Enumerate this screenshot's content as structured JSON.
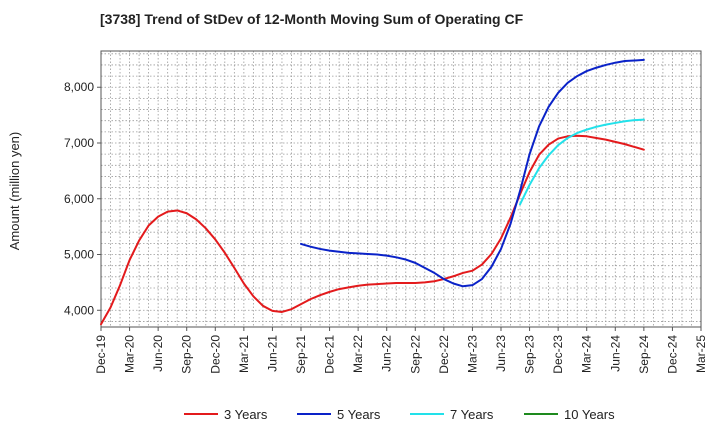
{
  "chart_data": {
    "type": "line",
    "title": "[3738]  Trend of StDev of 12-Month Moving Sum of Operating CF",
    "xlabel": "",
    "ylabel": "Amount (million yen)",
    "ylim": [
      3700,
      8650
    ],
    "yticks": [
      4000,
      5000,
      6000,
      7000,
      8000
    ],
    "ytick_labels": [
      "4,000",
      "5,000",
      "6,000",
      "7,000",
      "8,000"
    ],
    "xlim": [
      "Dec-19",
      "Mar-25"
    ],
    "xticks": [
      "Dec-19",
      "Mar-20",
      "Jun-20",
      "Sep-20",
      "Dec-20",
      "Mar-21",
      "Jun-21",
      "Sep-21",
      "Dec-21",
      "Mar-22",
      "Jun-22",
      "Sep-22",
      "Dec-22",
      "Mar-23",
      "Jun-23",
      "Sep-23",
      "Dec-23",
      "Mar-24",
      "Jun-24",
      "Sep-24",
      "Dec-24",
      "Mar-25"
    ],
    "grid": true,
    "grid_style": "dotted",
    "legend_position": "bottom",
    "series": [
      {
        "name": "3 Years",
        "color": "#e31a1c",
        "points": [
          [
            "Dec-19",
            3750
          ],
          [
            "Jan-20",
            4050
          ],
          [
            "Feb-20",
            4450
          ],
          [
            "Mar-20",
            4900
          ],
          [
            "Apr-20",
            5250
          ],
          [
            "May-20",
            5520
          ],
          [
            "Jun-20",
            5680
          ],
          [
            "Jul-20",
            5770
          ],
          [
            "Aug-20",
            5790
          ],
          [
            "Sep-20",
            5740
          ],
          [
            "Oct-20",
            5630
          ],
          [
            "Nov-20",
            5470
          ],
          [
            "Dec-20",
            5270
          ],
          [
            "Jan-21",
            5030
          ],
          [
            "Feb-21",
            4760
          ],
          [
            "Mar-21",
            4480
          ],
          [
            "Apr-21",
            4250
          ],
          [
            "May-21",
            4080
          ],
          [
            "Jun-21",
            3990
          ],
          [
            "Jul-21",
            3970
          ],
          [
            "Aug-21",
            4020
          ],
          [
            "Sep-21",
            4110
          ],
          [
            "Oct-21",
            4200
          ],
          [
            "Nov-21",
            4270
          ],
          [
            "Dec-21",
            4330
          ],
          [
            "Jan-22",
            4380
          ],
          [
            "Feb-22",
            4410
          ],
          [
            "Mar-22",
            4440
          ],
          [
            "Apr-22",
            4460
          ],
          [
            "May-22",
            4470
          ],
          [
            "Jun-22",
            4480
          ],
          [
            "Jul-22",
            4490
          ],
          [
            "Aug-22",
            4490
          ],
          [
            "Sep-22",
            4490
          ],
          [
            "Oct-22",
            4500
          ],
          [
            "Nov-22",
            4520
          ],
          [
            "Dec-22",
            4560
          ],
          [
            "Jan-23",
            4610
          ],
          [
            "Feb-23",
            4670
          ],
          [
            "Mar-23",
            4710
          ],
          [
            "Apr-23",
            4820
          ],
          [
            "May-23",
            5010
          ],
          [
            "Jun-23",
            5290
          ],
          [
            "Jul-23",
            5660
          ],
          [
            "Aug-23",
            6080
          ],
          [
            "Sep-23",
            6480
          ],
          [
            "Oct-23",
            6790
          ],
          [
            "Nov-23",
            6970
          ],
          [
            "Dec-23",
            7080
          ],
          [
            "Jan-24",
            7120
          ],
          [
            "Feb-24",
            7130
          ],
          [
            "Mar-24",
            7120
          ],
          [
            "Apr-24",
            7090
          ],
          [
            "May-24",
            7060
          ],
          [
            "Jun-24",
            7020
          ],
          [
            "Jul-24",
            6980
          ],
          [
            "Aug-24",
            6930
          ],
          [
            "Sep-24",
            6880
          ]
        ]
      },
      {
        "name": "5 Years",
        "color": "#0a22c8",
        "points": [
          [
            "Sep-21",
            5190
          ],
          [
            "Oct-21",
            5140
          ],
          [
            "Nov-21",
            5100
          ],
          [
            "Dec-21",
            5070
          ],
          [
            "Jan-22",
            5050
          ],
          [
            "Feb-22",
            5030
          ],
          [
            "Mar-22",
            5020
          ],
          [
            "Apr-22",
            5010
          ],
          [
            "May-22",
            5000
          ],
          [
            "Jun-22",
            4980
          ],
          [
            "Jul-22",
            4950
          ],
          [
            "Aug-22",
            4910
          ],
          [
            "Sep-22",
            4850
          ],
          [
            "Oct-22",
            4760
          ],
          [
            "Nov-22",
            4670
          ],
          [
            "Dec-22",
            4560
          ],
          [
            "Jan-23",
            4480
          ],
          [
            "Feb-23",
            4430
          ],
          [
            "Mar-23",
            4450
          ],
          [
            "Apr-23",
            4560
          ],
          [
            "May-23",
            4780
          ],
          [
            "Jun-23",
            5100
          ],
          [
            "Jul-23",
            5550
          ],
          [
            "Aug-23",
            6140
          ],
          [
            "Sep-23",
            6800
          ],
          [
            "Oct-23",
            7300
          ],
          [
            "Nov-23",
            7650
          ],
          [
            "Dec-23",
            7900
          ],
          [
            "Jan-24",
            8080
          ],
          [
            "Feb-24",
            8200
          ],
          [
            "Mar-24",
            8290
          ],
          [
            "Apr-24",
            8350
          ],
          [
            "May-24",
            8400
          ],
          [
            "Jun-24",
            8440
          ],
          [
            "Jul-24",
            8470
          ],
          [
            "Aug-24",
            8480
          ],
          [
            "Sep-24",
            8490
          ]
        ]
      },
      {
        "name": "7 Years",
        "color": "#22e1ea",
        "points": [
          [
            "Aug-23",
            5900
          ],
          [
            "Sep-23",
            6250
          ],
          [
            "Oct-23",
            6550
          ],
          [
            "Nov-23",
            6780
          ],
          [
            "Dec-23",
            6960
          ],
          [
            "Jan-24",
            7090
          ],
          [
            "Feb-24",
            7180
          ],
          [
            "Mar-24",
            7240
          ],
          [
            "Apr-24",
            7290
          ],
          [
            "May-24",
            7330
          ],
          [
            "Jun-24",
            7360
          ],
          [
            "Jul-24",
            7390
          ],
          [
            "Aug-24",
            7410
          ],
          [
            "Sep-24",
            7420
          ]
        ]
      },
      {
        "name": "10 Years",
        "color": "#1e8a1e",
        "points": []
      }
    ]
  }
}
